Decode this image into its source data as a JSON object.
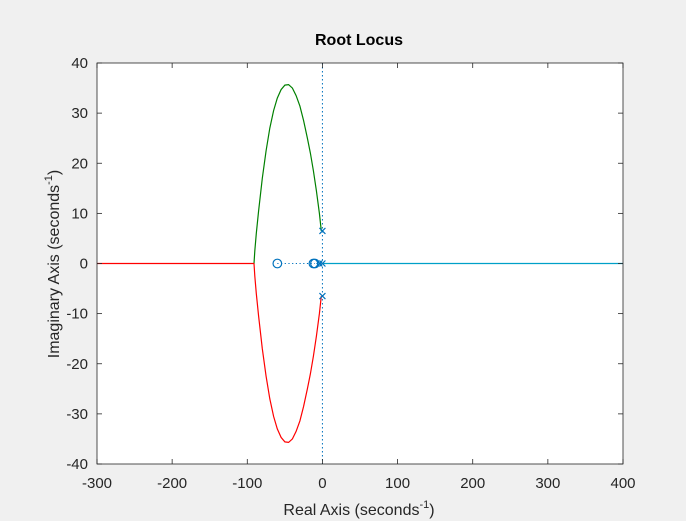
{
  "chart_data": {
    "type": "line",
    "title": "Root Locus",
    "xlabel": {
      "text": "Real Axis (seconds",
      "superscript": "-1",
      "close": ")"
    },
    "ylabel": {
      "text": "Imaginary Axis (seconds",
      "superscript": "-1",
      "close": ")"
    },
    "xlim": [
      -300,
      400
    ],
    "ylim": [
      -40,
      40
    ],
    "xticks": [
      -300,
      -200,
      -100,
      0,
      100,
      200,
      300,
      400
    ],
    "yticks": [
      -40,
      -30,
      -20,
      -10,
      0,
      10,
      20,
      30,
      40
    ],
    "grid": false,
    "colors": {
      "background": "#f0f0f0",
      "axes_background": "#ffffff",
      "axes_edge": "#262626",
      "marker": "#0072bd"
    },
    "series": [
      {
        "color": "#008000",
        "x": [
          -1.5,
          -4,
          -8,
          -12,
          -16,
          -20,
          -25,
          -30,
          -35,
          -40,
          -45,
          -50,
          -55,
          -60,
          -65,
          -70,
          -75,
          -80,
          -85,
          -88,
          -90,
          -91
        ],
        "y": [
          6.5,
          10,
          14.5,
          18.5,
          22,
          25,
          28.5,
          31.4,
          33.5,
          35,
          35.7,
          35.6,
          34.7,
          33,
          30.5,
          27,
          22.5,
          17,
          10.5,
          6,
          2.5,
          0
        ]
      },
      {
        "color": "#ff0000",
        "x": [
          -1.5,
          -4,
          -8,
          -12,
          -16,
          -20,
          -25,
          -30,
          -35,
          -40,
          -45,
          -50,
          -55,
          -60,
          -65,
          -70,
          -75,
          -80,
          -85,
          -88,
          -90,
          -91
        ],
        "y": [
          -6.5,
          -10,
          -14.5,
          -18.5,
          -22,
          -25,
          -28.5,
          -31.4,
          -33.5,
          -35,
          -35.7,
          -35.6,
          -34.7,
          -33,
          -30.5,
          -27,
          -22.5,
          -17,
          -10.5,
          -6,
          -2.5,
          0
        ]
      },
      {
        "color": "#ff0000",
        "x": [
          -91,
          -300
        ],
        "y": [
          0,
          0
        ]
      },
      {
        "color": "#00a0c8",
        "x": [
          0,
          400
        ],
        "y": [
          0,
          0
        ]
      },
      {
        "color": "#0072bd",
        "dotted": true,
        "x": [
          -60,
          -10
        ],
        "y": [
          0,
          0
        ]
      },
      {
        "color": "#0072bd",
        "dotted": true,
        "x": [
          -8,
          -1
        ],
        "y": [
          0,
          0
        ]
      }
    ],
    "poles": [
      {
        "x": 0,
        "y": 6.5
      },
      {
        "x": 0,
        "y": -6.5
      },
      {
        "x": 0,
        "y": 0
      },
      {
        "x": -4,
        "y": 0
      }
    ],
    "zeros": [
      {
        "x": -60,
        "y": 0
      },
      {
        "x": -12,
        "y": 0
      },
      {
        "x": -10,
        "y": 0
      }
    ],
    "vertical_reference": {
      "x": 0,
      "color": "#0072bd",
      "style": "dotted"
    }
  }
}
